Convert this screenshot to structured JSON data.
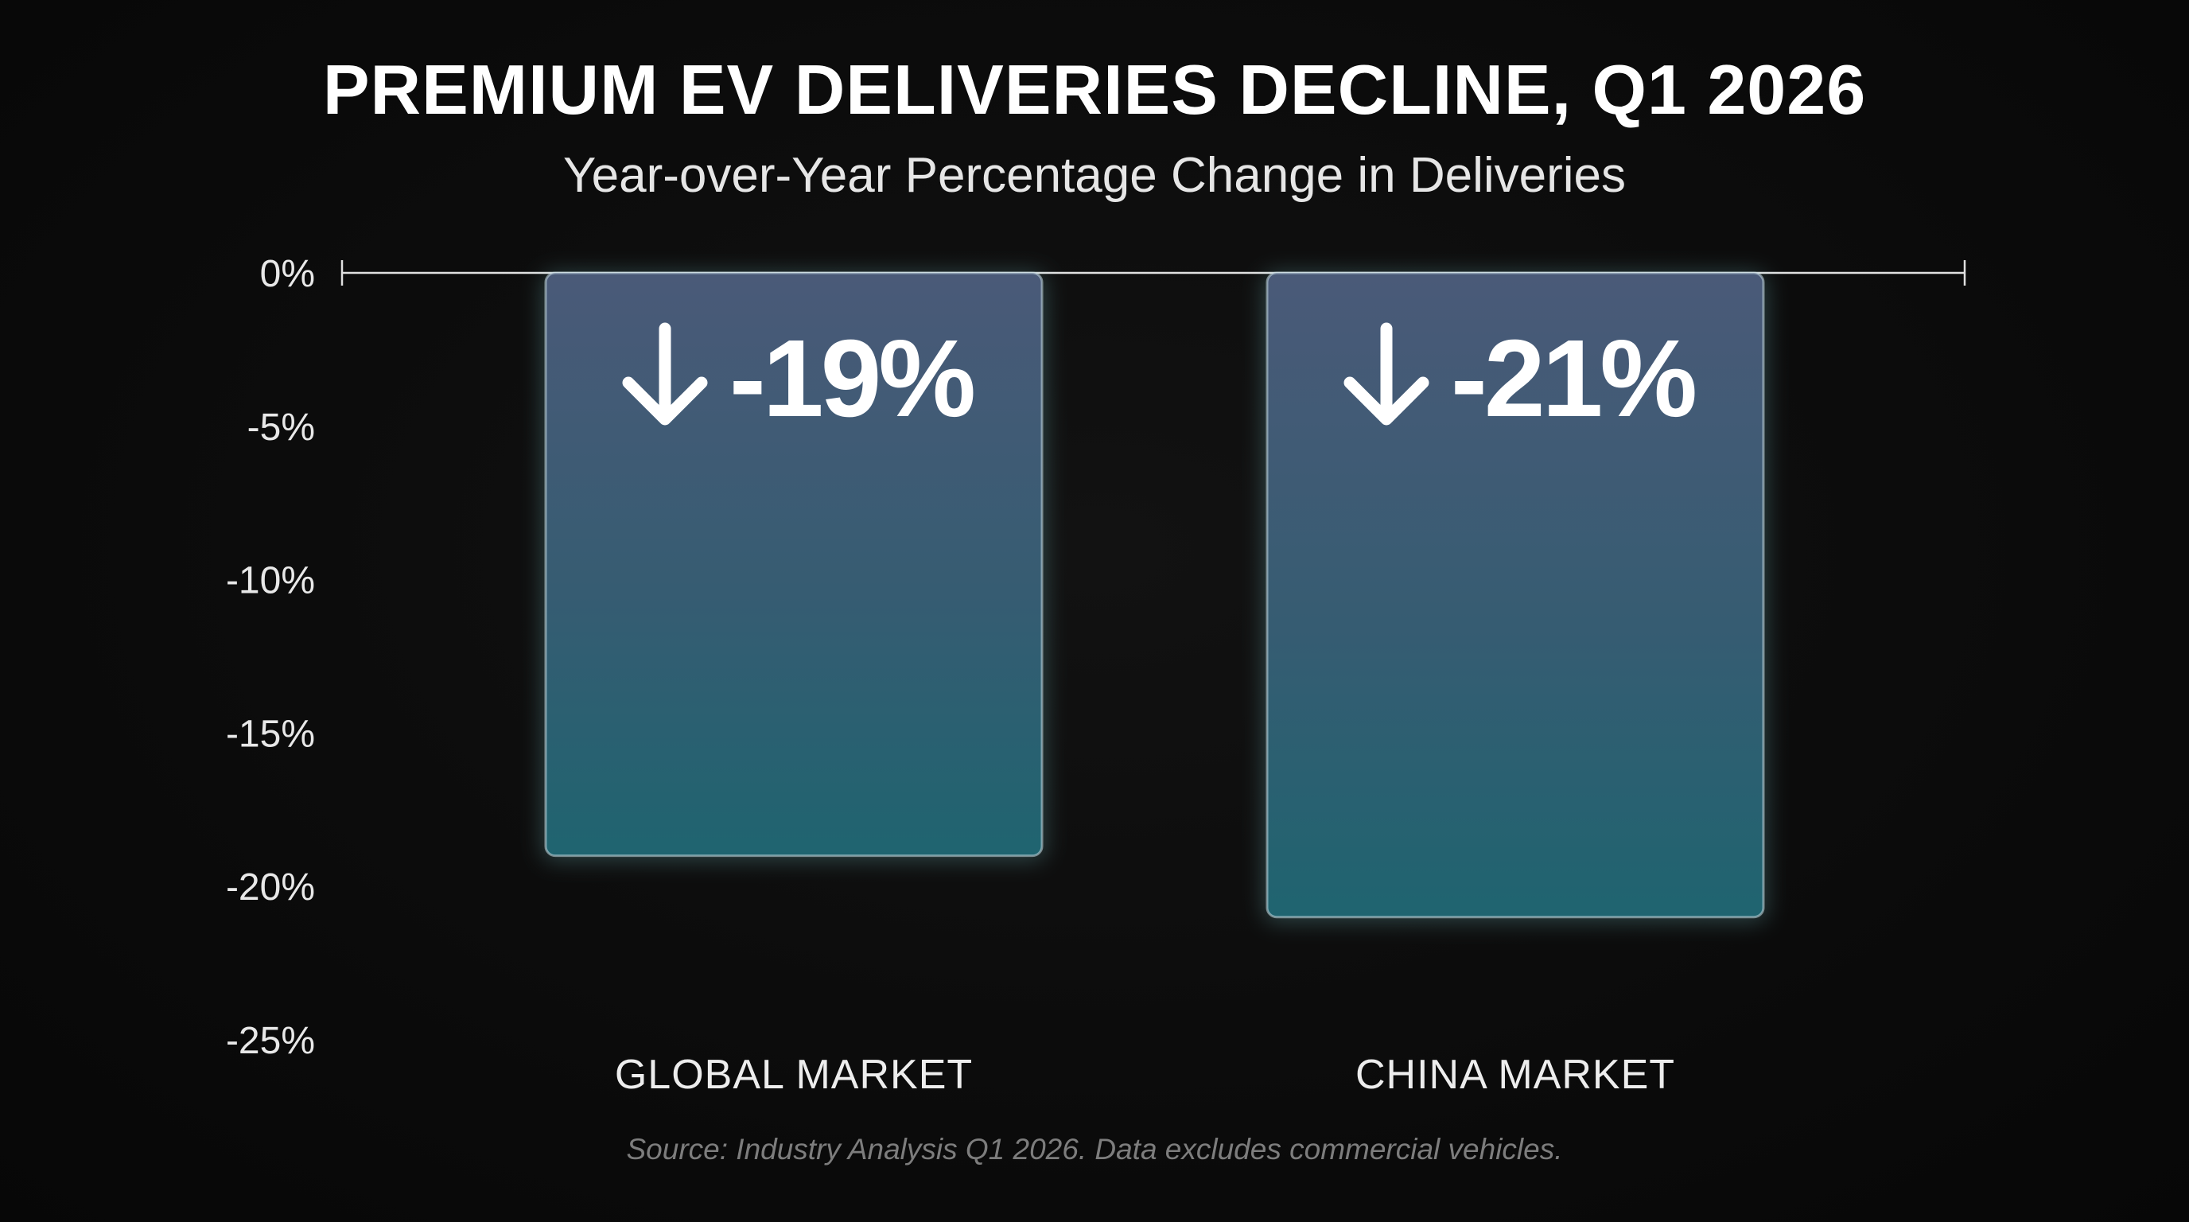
{
  "title": "PREMIUM EV DELIVERIES DECLINE, Q1 2026",
  "subtitle": "Year-over-Year Percentage Change in Deliveries",
  "source": "Source: Industry Analysis Q1 2026. Data excludes commercial vehicles.",
  "chart_data": {
    "type": "bar",
    "title": "PREMIUM EV DELIVERIES DECLINE, Q1 2026",
    "subtitle": "Year-over-Year Percentage Change in Deliveries",
    "categories": [
      "GLOBAL MARKET",
      "CHINA MARKET"
    ],
    "values": [
      -19,
      -21
    ],
    "data_labels": [
      "-19%",
      "-21%"
    ],
    "ylim": [
      -25,
      0
    ],
    "yticks": [
      0,
      -5,
      -10,
      -15,
      -20,
      -25
    ],
    "ytick_labels": [
      "0%",
      "-5%",
      "-10%",
      "-15%",
      "-20%",
      "-25%"
    ],
    "xlabel": "",
    "ylabel": "",
    "grid": false,
    "legend": "none",
    "colors": {
      "bar_top": "#4a5a78",
      "bar_bottom": "#1f6470",
      "bar_edge": "#c9dde3",
      "glow": "#7fd0d6",
      "axis": "#e0e0e0",
      "background": "#0c0c0c"
    },
    "annotation_icon": "arrow-down-icon"
  }
}
